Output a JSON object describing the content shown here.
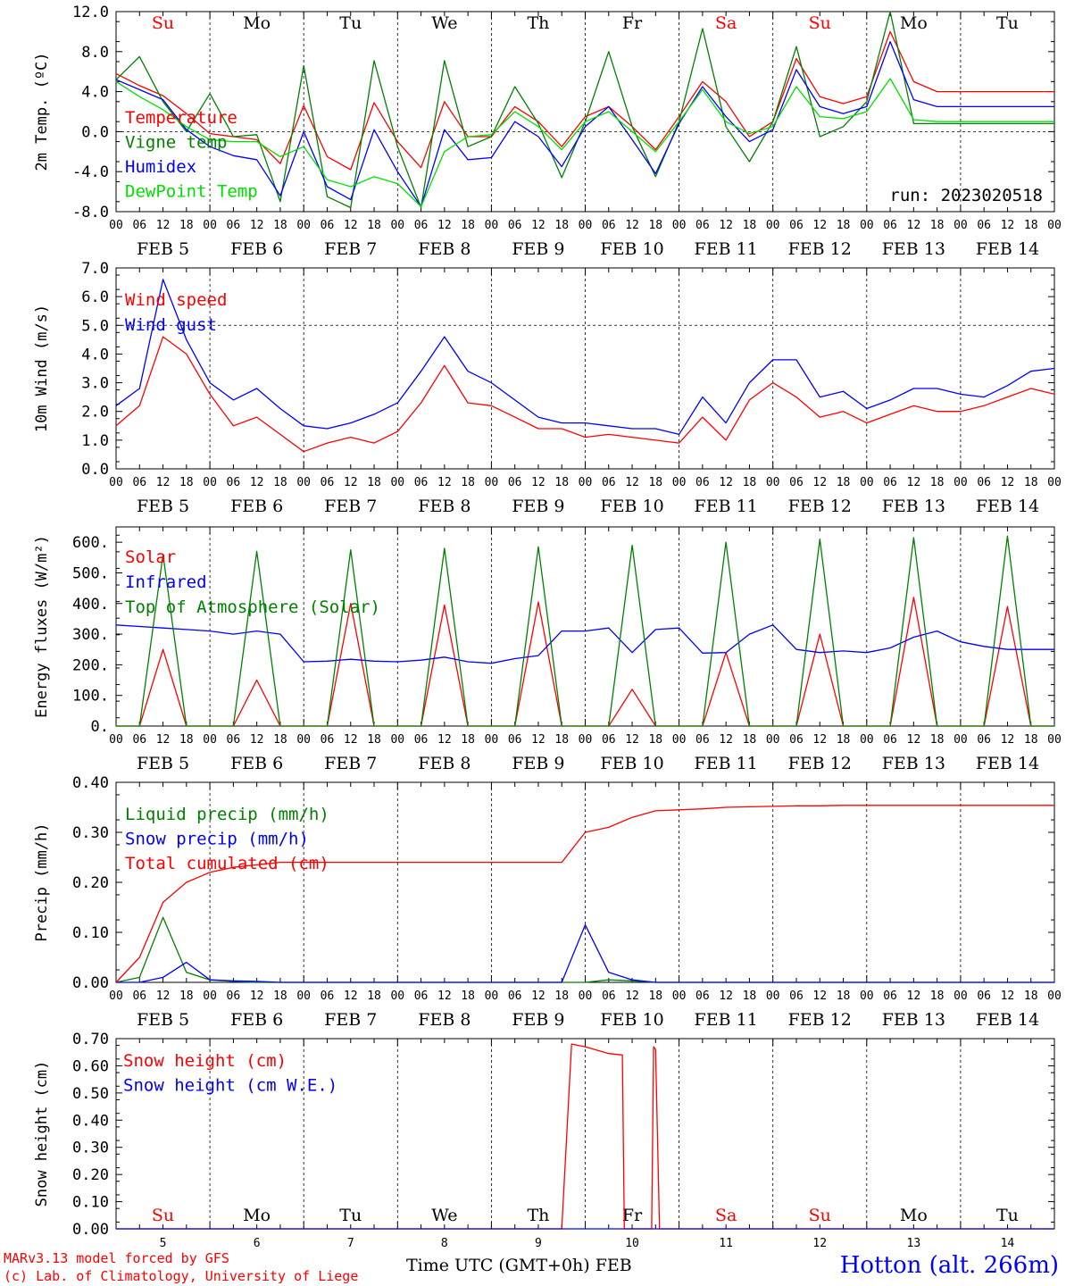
{
  "colors": {
    "red": "#ff0000",
    "green": "#008000",
    "blue": "#0000ff",
    "lightgreen": "#00e000",
    "grid": "#000000",
    "text": "#000000"
  },
  "hour_ticks": [
    "00",
    "06",
    "12",
    "18"
  ],
  "day_labels": [
    "FEB  5",
    "FEB  6",
    "FEB  7",
    "FEB  8",
    "FEB  9",
    "FEB 10",
    "FEB 11",
    "FEB 12",
    "FEB 13",
    "FEB 14"
  ],
  "weekdays": [
    {
      "label": "Su",
      "color": "#ff0000"
    },
    {
      "label": "Mo",
      "color": "#000000"
    },
    {
      "label": "Tu",
      "color": "#000000"
    },
    {
      "label": "We",
      "color": "#000000"
    },
    {
      "label": "Th",
      "color": "#000000"
    },
    {
      "label": "Fr",
      "color": "#000000"
    },
    {
      "label": "Sa",
      "color": "#ff0000"
    },
    {
      "label": "Su",
      "color": "#ff0000"
    },
    {
      "label": "Mo",
      "color": "#000000"
    },
    {
      "label": "Tu",
      "color": "#000000"
    }
  ],
  "bottom_day_numbers": [
    "5",
    "6",
    "7",
    "8",
    "9",
    "10",
    "11",
    "12",
    "13",
    "14"
  ],
  "footer": {
    "model": "MARv3.13 model forced by GFS",
    "credit": "(c) Lab. of Climatology, University of Liege",
    "xaxis_label": "Time UTC (GMT+0h) FEB",
    "station": "Hotton (alt. 266m)"
  },
  "chart_data": [
    {
      "type": "line",
      "ylabel": "2m Temp. (ºC)",
      "ylim": [
        -8,
        12
      ],
      "yticks": [
        "-8.0",
        "-4.0",
        "0.0",
        "4.0",
        "8.0",
        "12.0"
      ],
      "annotation": "run: 2023020518",
      "dashed_y": 0,
      "x_hours": [
        0,
        6,
        12,
        18,
        24,
        30,
        36,
        42,
        48,
        54,
        60,
        66,
        72,
        78,
        84,
        90,
        96,
        102,
        108,
        114,
        120,
        126,
        132,
        138,
        144,
        150,
        156,
        162,
        168,
        174,
        180,
        186,
        192,
        198,
        204,
        210,
        216,
        222,
        228,
        234,
        240
      ],
      "series": [
        {
          "name": "Temperature",
          "color": "#ff0000",
          "values": [
            5.8,
            4.6,
            3.6,
            1.8,
            -0.2,
            -0.5,
            -0.8,
            -3.2,
            2.6,
            -2.5,
            -3.8,
            2.9,
            -1.0,
            -3.6,
            3.0,
            -0.5,
            -0.5,
            2.5,
            1.0,
            -1.5,
            1.5,
            2.5,
            0.5,
            -1.8,
            1.5,
            5.0,
            3.0,
            -0.5,
            1.0,
            7.3,
            3.5,
            2.8,
            3.5,
            10.0,
            5.0,
            4.0,
            4.0,
            4.0,
            4.0,
            4.0,
            4.0
          ]
        },
        {
          "name": "Vigne temp",
          "color": "#008000",
          "values": [
            5.2,
            7.5,
            3.0,
            0.0,
            3.8,
            -0.5,
            -0.3,
            -7.0,
            6.6,
            -6.5,
            -7.6,
            7.1,
            -1.5,
            -7.6,
            7.1,
            -1.5,
            -0.5,
            4.5,
            0.8,
            -4.6,
            1.0,
            8.0,
            0.5,
            -4.5,
            1.0,
            10.3,
            0.5,
            -3.0,
            1.0,
            8.5,
            -0.5,
            0.5,
            3.0,
            12.0,
            0.8,
            0.8,
            0.8,
            0.8,
            0.8,
            0.8,
            0.8
          ]
        },
        {
          "name": "Humidex",
          "color": "#0000ff",
          "values": [
            5.2,
            4.2,
            3.2,
            0.2,
            -1.5,
            -2.4,
            -2.8,
            -6.4,
            0.0,
            -5.5,
            -6.8,
            0.2,
            -4.0,
            -7.5,
            0.2,
            -2.8,
            -2.6,
            1.0,
            -0.5,
            -3.5,
            0.5,
            2.5,
            -0.8,
            -4.2,
            0.8,
            4.5,
            1.5,
            -1.0,
            0.2,
            6.2,
            2.5,
            1.8,
            2.5,
            9.0,
            3.2,
            2.5,
            2.5,
            2.5,
            2.5,
            2.5,
            2.5
          ]
        },
        {
          "name": "DewPoint Temp",
          "color": "#00e000",
          "values": [
            5.0,
            3.5,
            2.2,
            0.5,
            -0.8,
            -1.0,
            -1.0,
            -2.5,
            -1.5,
            -4.8,
            -5.5,
            -4.5,
            -5.2,
            -7.5,
            -2.0,
            -0.5,
            -0.3,
            2.0,
            0.5,
            -1.8,
            1.0,
            2.0,
            0.0,
            -2.0,
            1.0,
            4.2,
            1.0,
            -0.2,
            0.5,
            4.5,
            1.5,
            1.3,
            2.0,
            5.3,
            1.2,
            1.0,
            1.0,
            1.0,
            1.0,
            1.0,
            1.0
          ]
        }
      ]
    },
    {
      "type": "line",
      "ylabel": "10m Wind (m/s)",
      "ylim": [
        0,
        7
      ],
      "yticks": [
        "0.0",
        "1.0",
        "2.0",
        "3.0",
        "4.0",
        "5.0",
        "6.0",
        "7.0"
      ],
      "dashed_y": 5,
      "x_hours": [
        0,
        6,
        12,
        18,
        24,
        30,
        36,
        42,
        48,
        54,
        60,
        66,
        72,
        78,
        84,
        90,
        96,
        102,
        108,
        114,
        120,
        126,
        132,
        138,
        144,
        150,
        156,
        162,
        168,
        174,
        180,
        186,
        192,
        198,
        204,
        210,
        216,
        222,
        228,
        234,
        240
      ],
      "series": [
        {
          "name": "Wind speed",
          "color": "#ff0000",
          "values": [
            1.5,
            2.2,
            4.6,
            4.0,
            2.6,
            1.5,
            1.8,
            1.2,
            0.6,
            0.9,
            1.1,
            0.9,
            1.3,
            2.3,
            3.6,
            2.3,
            2.2,
            1.8,
            1.4,
            1.4,
            1.1,
            1.2,
            1.1,
            1.0,
            0.9,
            1.8,
            1.0,
            2.4,
            3.0,
            2.5,
            1.8,
            2.0,
            1.6,
            1.9,
            2.2,
            2.0,
            2.0,
            2.2,
            2.5,
            2.8,
            2.6
          ]
        },
        {
          "name": "Wind gust",
          "color": "#0000ff",
          "values": [
            2.2,
            2.8,
            6.6,
            4.5,
            3.0,
            2.4,
            2.8,
            2.1,
            1.5,
            1.4,
            1.6,
            1.9,
            2.3,
            3.4,
            4.6,
            3.4,
            3.0,
            2.4,
            1.8,
            1.6,
            1.6,
            1.5,
            1.4,
            1.4,
            1.2,
            2.5,
            1.6,
            3.0,
            3.8,
            3.8,
            2.5,
            2.7,
            2.1,
            2.4,
            2.8,
            2.8,
            2.6,
            2.5,
            2.9,
            3.4,
            3.5
          ]
        }
      ]
    },
    {
      "type": "line",
      "ylabel": "Energy fluxes (W/m²)",
      "ylim": [
        0,
        650
      ],
      "yticks": [
        "0.",
        "100.",
        "200.",
        "300.",
        "400.",
        "500.",
        "600."
      ],
      "x_hours": [
        0,
        6,
        12,
        18,
        24,
        30,
        36,
        42,
        48,
        54,
        60,
        66,
        72,
        78,
        84,
        90,
        96,
        102,
        108,
        114,
        120,
        126,
        132,
        138,
        144,
        150,
        156,
        162,
        168,
        174,
        180,
        186,
        192,
        198,
        204,
        210,
        216,
        222,
        228,
        234,
        240
      ],
      "series": [
        {
          "name": "Solar",
          "color": "#ff0000",
          "values": [
            0,
            0,
            250,
            0,
            0,
            0,
            150,
            0,
            0,
            0,
            400,
            0,
            0,
            0,
            395,
            0,
            0,
            0,
            405,
            0,
            0,
            0,
            120,
            0,
            0,
            0,
            240,
            0,
            0,
            0,
            300,
            0,
            0,
            0,
            420,
            0,
            0,
            0,
            390,
            0,
            0
          ]
        },
        {
          "name": "Infrared",
          "color": "#0000ff",
          "values": [
            330,
            325,
            320,
            315,
            310,
            300,
            310,
            300,
            210,
            212,
            218,
            212,
            210,
            215,
            225,
            210,
            205,
            220,
            230,
            310,
            310,
            320,
            240,
            315,
            320,
            238,
            240,
            300,
            330,
            250,
            240,
            245,
            240,
            255,
            290,
            310,
            275,
            260,
            250,
            250,
            250
          ]
        },
        {
          "name": "Top of Atmosphere (Solar)",
          "color": "#008000",
          "values": [
            0,
            0,
            560,
            0,
            0,
            0,
            570,
            0,
            0,
            0,
            575,
            0,
            0,
            0,
            580,
            0,
            0,
            0,
            585,
            0,
            0,
            0,
            590,
            0,
            0,
            0,
            600,
            0,
            0,
            0,
            610,
            0,
            0,
            0,
            615,
            0,
            0,
            0,
            620,
            0,
            0
          ]
        }
      ]
    },
    {
      "type": "line",
      "ylabel": "Precip (mm/h)",
      "ylim": [
        0,
        0.4
      ],
      "yticks": [
        "0.00",
        "0.10",
        "0.20",
        "0.30",
        "0.40"
      ],
      "x_hours": [
        0,
        6,
        12,
        18,
        24,
        30,
        36,
        42,
        48,
        54,
        60,
        66,
        72,
        78,
        84,
        90,
        96,
        102,
        108,
        114,
        120,
        126,
        132,
        138,
        144,
        150,
        156,
        162,
        168,
        174,
        180,
        186,
        192,
        198,
        204,
        210,
        216,
        222,
        228,
        234,
        240
      ],
      "series": [
        {
          "name": "Liquid precip (mm/h)",
          "color": "#008000",
          "values": [
            0,
            0.01,
            0.13,
            0.02,
            0.005,
            0.002,
            0,
            0,
            0,
            0,
            0,
            0,
            0,
            0,
            0,
            0,
            0,
            0,
            0,
            0,
            0,
            0.005,
            0.003,
            0,
            0,
            0,
            0,
            0,
            0,
            0,
            0,
            0,
            0,
            0,
            0,
            0,
            0,
            0,
            0,
            0,
            0
          ]
        },
        {
          "name": "Snow precip (mm/h)",
          "color": "#0000ff",
          "values": [
            0,
            0,
            0.01,
            0.04,
            0.005,
            0.003,
            0.002,
            0,
            0,
            0,
            0,
            0,
            0,
            0,
            0,
            0,
            0,
            0,
            0,
            0,
            0.115,
            0.02,
            0.005,
            0,
            0,
            0,
            0,
            0,
            0,
            0,
            0,
            0,
            0,
            0,
            0,
            0,
            0,
            0,
            0,
            0,
            0
          ]
        },
        {
          "name": "Total cumulated (cm)",
          "color": "#ff0000",
          "values": [
            0.0,
            0.05,
            0.16,
            0.2,
            0.22,
            0.23,
            0.235,
            0.24,
            0.24,
            0.24,
            0.24,
            0.24,
            0.24,
            0.24,
            0.24,
            0.24,
            0.24,
            0.24,
            0.24,
            0.24,
            0.3,
            0.31,
            0.33,
            0.343,
            0.345,
            0.347,
            0.35,
            0.351,
            0.352,
            0.353,
            0.353,
            0.354,
            0.354,
            0.354,
            0.354,
            0.354,
            0.354,
            0.354,
            0.354,
            0.354,
            0.354
          ]
        }
      ]
    },
    {
      "type": "line",
      "ylabel": "Snow height (cm)",
      "ylim": [
        0,
        0.7
      ],
      "yticks": [
        "0.00",
        "0.10",
        "0.20",
        "0.30",
        "0.40",
        "0.50",
        "0.60",
        "0.70"
      ],
      "x_hours": [
        0,
        6,
        12,
        18,
        24,
        30,
        36,
        42,
        48,
        54,
        60,
        66,
        72,
        78,
        84,
        90,
        96,
        102,
        108,
        114,
        116.5,
        120,
        126,
        129.5,
        130,
        137,
        137.5,
        138,
        139,
        140,
        144,
        150,
        156,
        162,
        168,
        174,
        180,
        186,
        192,
        198,
        204,
        210,
        216,
        222,
        228,
        234,
        240
      ],
      "series": [
        {
          "name": "Snow height (cm)",
          "color": "#ff0000",
          "values": [
            0,
            0,
            0,
            0,
            0,
            0,
            0,
            0,
            0,
            0,
            0,
            0,
            0,
            0,
            0,
            0,
            0,
            0,
            0,
            0,
            0.68,
            0.67,
            0.645,
            0.64,
            0,
            0,
            0.67,
            0.66,
            0,
            0,
            0,
            0,
            0,
            0,
            0,
            0,
            0,
            0,
            0,
            0,
            0,
            0,
            0,
            0,
            0,
            0,
            0
          ]
        },
        {
          "name": "Snow height (cm W.E.)",
          "color": "#0000ff",
          "values": [
            0,
            0,
            0,
            0,
            0,
            0,
            0,
            0,
            0,
            0,
            0,
            0,
            0,
            0,
            0,
            0,
            0,
            0,
            0,
            0,
            0,
            0,
            0,
            0,
            0,
            0,
            0,
            0,
            0,
            0,
            0,
            0,
            0,
            0,
            0,
            0,
            0,
            0,
            0,
            0,
            0,
            0,
            0,
            0,
            0,
            0,
            0
          ]
        }
      ]
    }
  ]
}
